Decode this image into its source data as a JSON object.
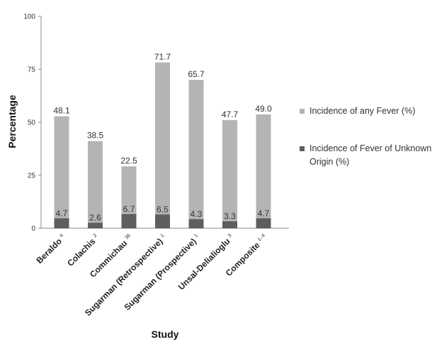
{
  "chart_data": {
    "type": "bar",
    "stacked": true,
    "xlabel": "Study",
    "ylabel": "Percentage",
    "ylim": [
      0,
      100
    ],
    "yticks": [
      0,
      25,
      50,
      75,
      100
    ],
    "grid": false,
    "legend_position": "right",
    "categories": [
      {
        "name": "Beraldo",
        "sup": "4"
      },
      {
        "name": "Colachis",
        "sup": "2"
      },
      {
        "name": "Commichau",
        "sup": "36"
      },
      {
        "name": "Sugarman (Retrospective)",
        "sup": "1"
      },
      {
        "name": "Sugarman (Prospective)",
        "sup": "1"
      },
      {
        "name": "Unsal-Delialioglu",
        "sup": "3"
      },
      {
        "name": "Composite",
        "sup": "1–4"
      }
    ],
    "series": [
      {
        "name": "Incidence of Fever of Unknown Origin (%)",
        "color": "#5e5e5e",
        "values": [
          4.7,
          2.6,
          6.7,
          6.5,
          4.3,
          3.3,
          4.7
        ],
        "labels": [
          "4.7",
          "2.6",
          "6.7",
          "6.5",
          "4.3",
          "3.3",
          "4.7"
        ]
      },
      {
        "name": "Incidence of any Fever (%)",
        "color": "#b4b4b4",
        "values": [
          48.1,
          38.5,
          22.5,
          71.7,
          65.7,
          47.7,
          49.0
        ],
        "labels": [
          "48.1",
          "38.5",
          "22.5",
          "71.7",
          "65.7",
          "47.7",
          "49.0"
        ]
      }
    ]
  },
  "legend": [
    {
      "label": "Incidence of any Fever (%)",
      "color": "#b4b4b4"
    },
    {
      "label": "Incidence of Fever of Unknown Origin (%)",
      "color": "#5e5e5e"
    }
  ]
}
